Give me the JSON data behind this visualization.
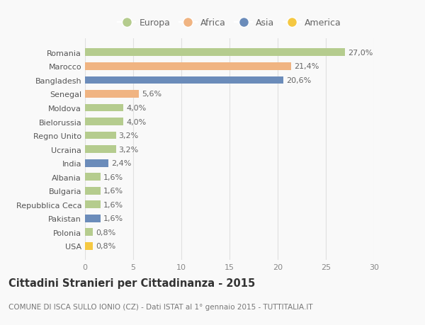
{
  "categories": [
    "Romania",
    "Marocco",
    "Bangladesh",
    "Senegal",
    "Moldova",
    "Bielorussia",
    "Regno Unito",
    "Ucraina",
    "India",
    "Albania",
    "Bulgaria",
    "Repubblica Ceca",
    "Pakistan",
    "Polonia",
    "USA"
  ],
  "values": [
    27.0,
    21.4,
    20.6,
    5.6,
    4.0,
    4.0,
    3.2,
    3.2,
    2.4,
    1.6,
    1.6,
    1.6,
    1.6,
    0.8,
    0.8
  ],
  "labels": [
    "27,0%",
    "21,4%",
    "20,6%",
    "5,6%",
    "4,0%",
    "4,0%",
    "3,2%",
    "3,2%",
    "2,4%",
    "1,6%",
    "1,6%",
    "1,6%",
    "1,6%",
    "0,8%",
    "0,8%"
  ],
  "continents": [
    "Europa",
    "Africa",
    "Asia",
    "Africa",
    "Europa",
    "Europa",
    "Europa",
    "Europa",
    "Asia",
    "Europa",
    "Europa",
    "Europa",
    "Asia",
    "Europa",
    "America"
  ],
  "colors": {
    "Europa": "#b5cc8e",
    "Africa": "#f0b482",
    "Asia": "#6b8cba",
    "America": "#f5c842"
  },
  "legend_order": [
    "Europa",
    "Africa",
    "Asia",
    "America"
  ],
  "title": "Cittadini Stranieri per Cittadinanza - 2015",
  "subtitle": "COMUNE DI ISCA SULLO IONIO (CZ) - Dati ISTAT al 1° gennaio 2015 - TUTTITALIA.IT",
  "xlim": [
    0,
    30
  ],
  "xticks": [
    0,
    5,
    10,
    15,
    20,
    25,
    30
  ],
  "background_color": "#f9f9f9",
  "grid_color": "#e0e0e0",
  "title_fontsize": 10.5,
  "subtitle_fontsize": 7.5,
  "label_fontsize": 8,
  "tick_fontsize": 8,
  "legend_fontsize": 9,
  "bar_height": 0.55
}
